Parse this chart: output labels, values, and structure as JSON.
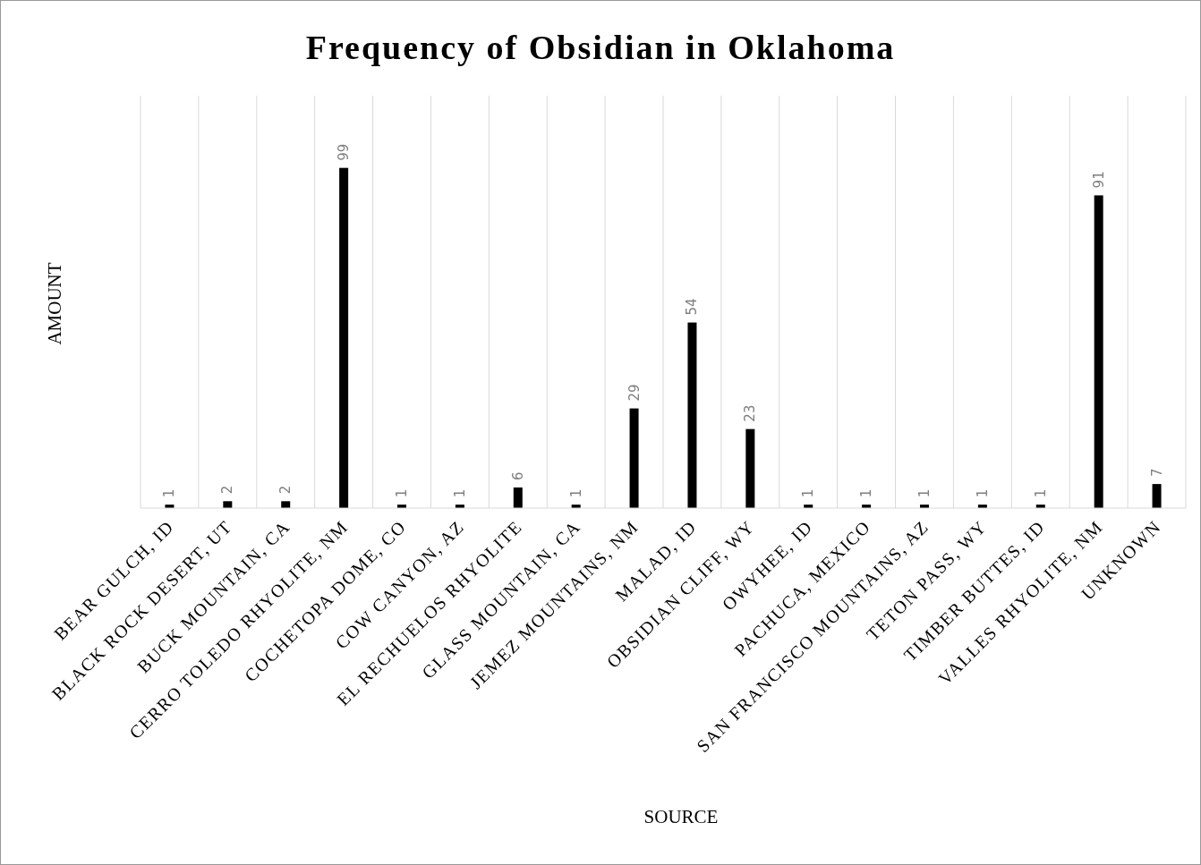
{
  "chart_data": {
    "type": "bar",
    "title": "Frequency of Obsidian in Oklahoma",
    "xlabel": "SOURCE",
    "ylabel": "AMOUNT",
    "categories": [
      "BEAR GULCH, ID",
      "BLACK ROCK DESERT, UT",
      "BUCK MOUNTAIN, CA",
      "CERRO TOLEDO RHYOLITE, NM",
      "COCHETOPA DOME, CO",
      "COW CANYON, AZ",
      "EL RECHUELOS RHYOLITE",
      "GLASS MOUNTAIN, CA",
      "JEMEZ MOUNTAINS, NM",
      "MALAD, ID",
      "OBSIDIAN CLIFF, WY",
      "OWYHEE, ID",
      "PACHUCA, MEXICO",
      "SAN FRANCISCO MOUNTAINS, AZ",
      "TETON PASS, WY",
      "TIMBER BUTTES, ID",
      "VALLES RHYOLITE, NM",
      "UNKNOWN"
    ],
    "values": [
      1,
      2,
      2,
      99,
      1,
      1,
      6,
      1,
      29,
      54,
      23,
      1,
      1,
      1,
      1,
      1,
      91,
      7
    ],
    "color": "#000000",
    "ylim": [
      0,
      120
    ],
    "data_labels": true,
    "grid": "x",
    "tick_labels": "x"
  }
}
